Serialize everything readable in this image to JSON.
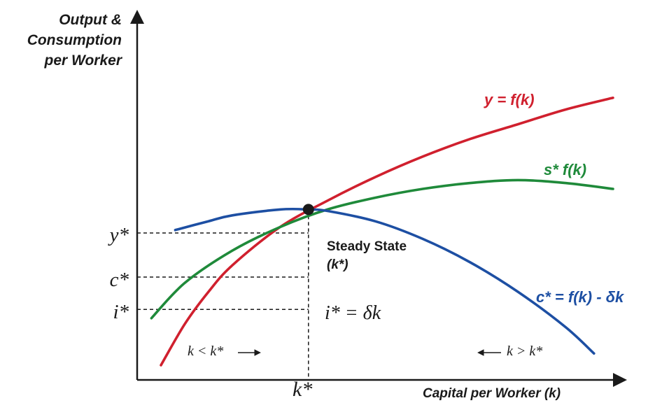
{
  "chart_data": {
    "type": "line",
    "title": "",
    "ylabel_lines": [
      "Output &",
      "Consumption",
      "per Worker"
    ],
    "xlabel": "Capital per Worker (k)",
    "grid": false,
    "xlim": [
      0,
      10
    ],
    "ylim": [
      0,
      10
    ],
    "series": [
      {
        "name": "y = f(k)",
        "color": "#d0202e",
        "x": [
          0.5,
          1.0,
          1.5,
          2.0,
          3.0,
          4.0,
          5.0,
          6.0,
          7.0,
          8.0,
          9.0,
          10.0
        ],
        "y": [
          0.5,
          1.9,
          3.0,
          3.9,
          5.2,
          6.1,
          6.9,
          7.6,
          8.2,
          8.7,
          9.2,
          9.6
        ]
      },
      {
        "name": "s* f(k)",
        "color": "#1f8a3a",
        "x": [
          0.3,
          1.0,
          2.0,
          3.0,
          4.0,
          5.0,
          6.0,
          7.0,
          8.0,
          9.0,
          10.0
        ],
        "y": [
          2.1,
          3.3,
          4.4,
          5.2,
          5.8,
          6.2,
          6.5,
          6.7,
          6.8,
          6.7,
          6.5
        ]
      },
      {
        "name": "c* = f(k) - δk",
        "color": "#1d4fa3",
        "x": [
          0.8,
          1.5,
          2.0,
          3.0,
          3.6,
          4.0,
          5.0,
          6.0,
          7.0,
          8.0,
          9.0,
          9.6
        ],
        "y": [
          5.1,
          5.4,
          5.6,
          5.8,
          5.8,
          5.75,
          5.4,
          4.8,
          4.0,
          3.0,
          1.8,
          0.9
        ]
      }
    ],
    "steady_state": {
      "k": 3.6,
      "y_level": 5.0,
      "c_level": 3.5,
      "i_level": 2.4,
      "point_y": 5.8
    },
    "level_labels": {
      "y": "y*",
      "c": "c*",
      "i": "i*",
      "k": "k*"
    },
    "annotations": {
      "steady_state_line1": "Steady State",
      "steady_state_line2": "(k*)",
      "investment": "i* = δk",
      "left_region": "k < k*",
      "right_region": "k > k*"
    }
  }
}
